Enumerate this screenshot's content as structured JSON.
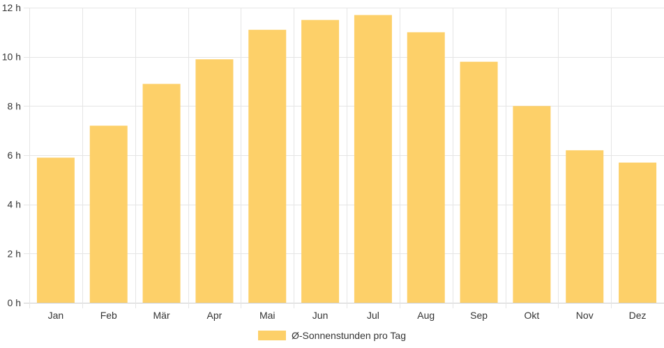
{
  "chart_data": {
    "type": "bar",
    "categories": [
      "Jan",
      "Feb",
      "Mär",
      "Apr",
      "Mai",
      "Jun",
      "Jul",
      "Aug",
      "Sep",
      "Okt",
      "Nov",
      "Dez"
    ],
    "series": [
      {
        "name": "Ø-Sonnenstunden pro Tag",
        "values": [
          5.9,
          7.2,
          8.9,
          9.9,
          11.1,
          11.5,
          11.7,
          11.0,
          9.8,
          8.0,
          6.2,
          5.7
        ]
      }
    ],
    "ylim": [
      0,
      12
    ],
    "yticks": [
      0,
      2,
      4,
      6,
      8,
      10,
      12
    ],
    "ytick_labels": [
      "0 h",
      "2 h",
      "4 h",
      "6 h",
      "8 h",
      "10 h",
      "12 h"
    ],
    "grid": true,
    "legend_position": "bottom",
    "colors": {
      "bar": "#fdd069",
      "grid": "#e5e5e5",
      "text": "#333333"
    }
  }
}
